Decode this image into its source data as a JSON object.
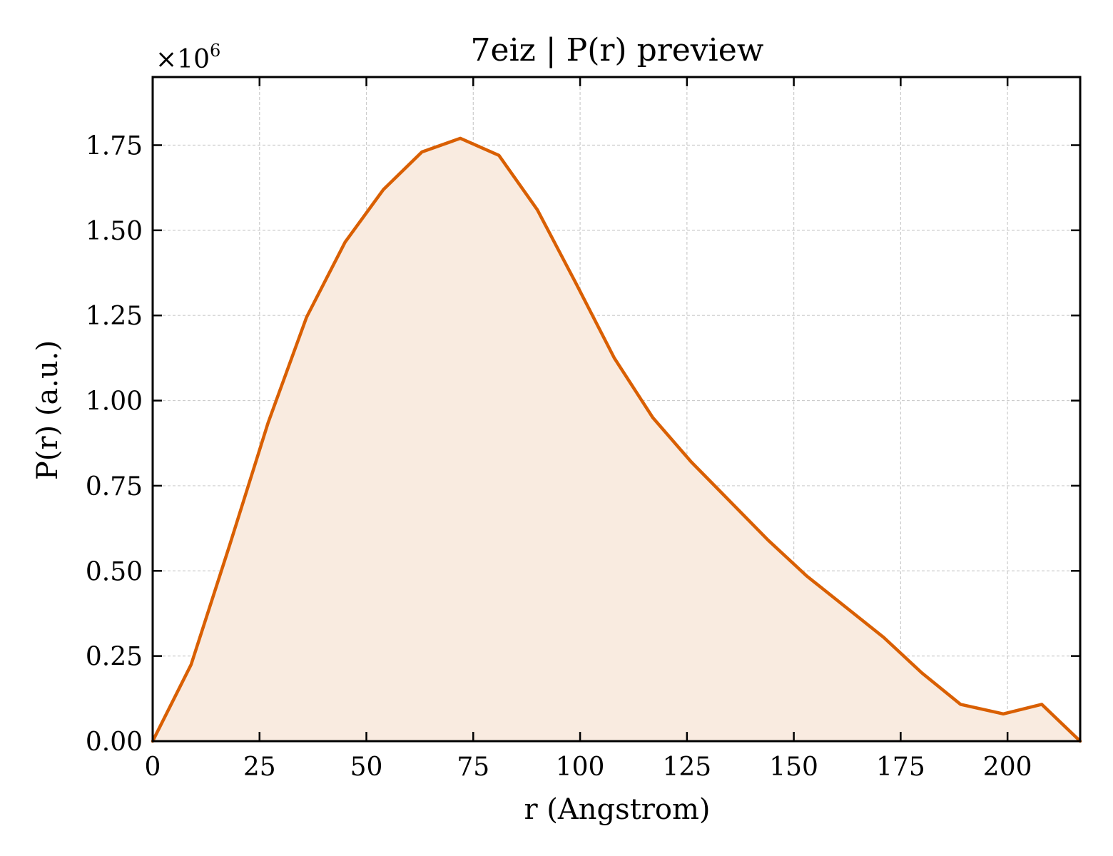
{
  "chart_data": {
    "type": "area",
    "title": "7eiz | P(r) preview",
    "xlabel": "r (Angstrom)",
    "ylabel": "P(r) (a.u.)",
    "y_multiplier_label": "×10⁶",
    "x_multiplier_base": "×10",
    "x_multiplier_exponent": "6",
    "xlim": [
      0,
      217
    ],
    "ylim": [
      0,
      1.95
    ],
    "x_ticks": [
      0,
      25,
      50,
      75,
      100,
      125,
      150,
      175,
      200
    ],
    "x_tick_labels": [
      "0",
      "25",
      "50",
      "75",
      "100",
      "125",
      "150",
      "175",
      "200"
    ],
    "y_ticks": [
      0,
      0.25,
      0.5,
      0.75,
      1.0,
      1.25,
      1.5,
      1.75
    ],
    "y_tick_labels": [
      "0.00",
      "0.25",
      "0.50",
      "0.75",
      "1.00",
      "1.25",
      "1.50",
      "1.75"
    ],
    "grid": true,
    "line_color": "#d95f02",
    "fill_color": "#f9ebe0",
    "series": [
      {
        "x": [
          0,
          9,
          18,
          27,
          36,
          45,
          54,
          63,
          72,
          81,
          90,
          99,
          108,
          117,
          126,
          135,
          144,
          153,
          162,
          171,
          180,
          189,
          199,
          208,
          217
        ],
        "y": [
          0.0,
          0.225,
          0.575,
          0.935,
          1.245,
          1.465,
          1.62,
          1.73,
          1.77,
          1.72,
          1.56,
          1.345,
          1.125,
          0.95,
          0.82,
          0.705,
          0.59,
          0.485,
          0.395,
          0.305,
          0.2,
          0.108,
          0.08,
          0.108,
          0.0
        ]
      }
    ]
  }
}
